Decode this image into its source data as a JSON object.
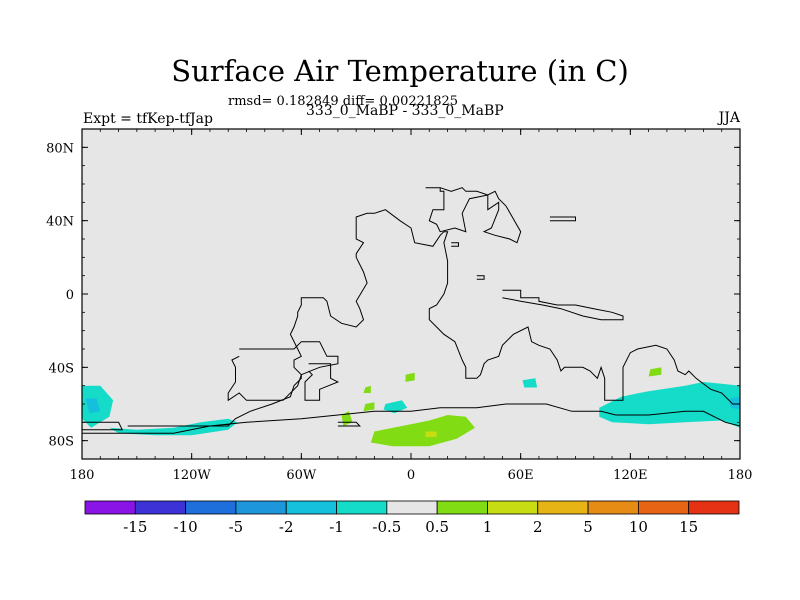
{
  "chart_data": {
    "type": "heatmap",
    "title": "Surface Air Temperature (in C)",
    "stats_line": "rmsd= 0.182849 diff= 0.00221825",
    "left_label": "Expt = tfKep-tfJap",
    "center_label": "333_0_MaBP - 333_0_MaBP",
    "right_label": "JJA",
    "xlim": [
      -180,
      180
    ],
    "ylim": [
      -90,
      90
    ],
    "x_ticks": [
      {
        "value": -180,
        "label": "180"
      },
      {
        "value": -120,
        "label": "120W"
      },
      {
        "value": -60,
        "label": "60W"
      },
      {
        "value": 0,
        "label": "0"
      },
      {
        "value": 60,
        "label": "60E"
      },
      {
        "value": 120,
        "label": "120E"
      },
      {
        "value": 180,
        "label": "180"
      }
    ],
    "y_ticks": [
      {
        "value": 80,
        "label": "80N"
      },
      {
        "value": 40,
        "label": "40N"
      },
      {
        "value": 0,
        "label": "0"
      },
      {
        "value": -40,
        "label": "40S"
      },
      {
        "value": -80,
        "label": "80S"
      }
    ],
    "colorbar": {
      "labels": [
        "-15",
        "-10",
        "-5",
        "-2",
        "-1",
        "-0.5",
        "0.5",
        "1",
        "2",
        "5",
        "10",
        "15"
      ],
      "colors": [
        "#8a14e6",
        "#3c32d6",
        "#1e6edc",
        "#1e96dc",
        "#14c0dc",
        "#14dcc8",
        "#e6e6e6",
        "#82dc14",
        "#c8dc14",
        "#e6b414",
        "#e68c14",
        "#e66414",
        "#e63214"
      ]
    },
    "background_color": "#e6e6e6",
    "anomaly_regions": [
      {
        "level": "-1 to -0.5",
        "color": "#14dcc8",
        "points": [
          [
            -180,
            -50
          ],
          [
            -170,
            -50
          ],
          [
            -163,
            -58
          ],
          [
            -165,
            -67
          ],
          [
            -175,
            -73
          ],
          [
            -180,
            -68
          ]
        ]
      },
      {
        "level": "-1 to -0.5",
        "color": "#14dcc8",
        "points": [
          [
            -165,
            -73
          ],
          [
            -150,
            -74
          ],
          [
            -130,
            -73
          ],
          [
            -115,
            -70
          ],
          [
            -100,
            -68
          ],
          [
            -95,
            -70
          ],
          [
            -100,
            -74
          ],
          [
            -120,
            -77
          ],
          [
            -140,
            -77
          ],
          [
            -160,
            -76
          ]
        ]
      },
      {
        "level": "-1 to -0.5",
        "color": "#14dcc8",
        "points": [
          [
            -14,
            -60
          ],
          [
            -5,
            -58
          ],
          [
            -2,
            -62
          ],
          [
            -9,
            -65
          ],
          [
            -15,
            -63
          ]
        ]
      },
      {
        "level": "-1 to -0.5",
        "color": "#14dcc8",
        "points": [
          [
            61,
            -47
          ],
          [
            68,
            -46
          ],
          [
            69,
            -51
          ],
          [
            62,
            -51
          ]
        ]
      },
      {
        "level": "-1 to -0.5",
        "color": "#14dcc8",
        "points": [
          [
            103,
            -62
          ],
          [
            115,
            -56
          ],
          [
            130,
            -53
          ],
          [
            150,
            -50
          ],
          [
            160,
            -48
          ],
          [
            170,
            -49
          ],
          [
            180,
            -50
          ],
          [
            180,
            -73
          ],
          [
            170,
            -69
          ],
          [
            150,
            -70
          ],
          [
            130,
            -71
          ],
          [
            110,
            -70
          ],
          [
            103,
            -67
          ]
        ]
      },
      {
        "level": "-2 to -1",
        "color": "#14c0dc",
        "points": [
          [
            -178,
            -57
          ],
          [
            -172,
            -57
          ],
          [
            -170,
            -64
          ],
          [
            -176,
            -65
          ]
        ]
      },
      {
        "level": "-2 to -1",
        "color": "#14c0dc",
        "points": [
          [
            174,
            -57
          ],
          [
            180,
            -56
          ],
          [
            180,
            -63
          ],
          [
            175,
            -62
          ]
        ]
      },
      {
        "level": "0.5 to 1",
        "color": "#82dc14",
        "points": [
          [
            -38,
            -66
          ],
          [
            -34,
            -64
          ],
          [
            -32,
            -70
          ],
          [
            -37,
            -72
          ]
        ]
      },
      {
        "level": "0.5 to 1",
        "color": "#82dc14",
        "points": [
          [
            -25,
            -60
          ],
          [
            -20,
            -59
          ],
          [
            -20,
            -63
          ],
          [
            -26,
            -64
          ]
        ]
      },
      {
        "level": "0.5 to 1",
        "color": "#82dc14",
        "points": [
          [
            -25,
            -51
          ],
          [
            -22,
            -50
          ],
          [
            -22,
            -54
          ],
          [
            -26,
            -54
          ]
        ]
      },
      {
        "level": "0.5 to 1",
        "color": "#82dc14",
        "points": [
          [
            -3,
            -44
          ],
          [
            2,
            -43
          ],
          [
            2,
            -47
          ],
          [
            -3,
            -48
          ]
        ]
      },
      {
        "level": "0.5 to 1",
        "color": "#82dc14",
        "points": [
          [
            -20,
            -75
          ],
          [
            -5,
            -72
          ],
          [
            10,
            -69
          ],
          [
            20,
            -66
          ],
          [
            30,
            -67
          ],
          [
            35,
            -73
          ],
          [
            25,
            -79
          ],
          [
            10,
            -83
          ],
          [
            -10,
            -83
          ],
          [
            -22,
            -81
          ]
        ]
      },
      {
        "level": "0.5 to 1",
        "color": "#82dc14",
        "points": [
          [
            131,
            -41
          ],
          [
            137,
            -40
          ],
          [
            137,
            -44
          ],
          [
            130,
            -45
          ]
        ]
      },
      {
        "level": "1 to 2",
        "color": "#c8dc14",
        "points": [
          [
            8,
            -75
          ],
          [
            14,
            -75
          ],
          [
            14,
            -78
          ],
          [
            8,
            -78
          ]
        ]
      }
    ],
    "land_outlines": [
      [
        [
          -155,
          -72
        ],
        [
          -100,
          -72
        ],
        [
          -96,
          -68
        ],
        [
          -88,
          -64
        ],
        [
          -76,
          -60
        ],
        [
          -66,
          -56
        ],
        [
          -64,
          -50
        ],
        [
          -60,
          -46
        ],
        [
          -60,
          -44
        ],
        [
          -64,
          -40
        ],
        [
          -64,
          -36
        ],
        [
          -60,
          -34
        ],
        [
          -62,
          -30
        ],
        [
          -66,
          -22
        ],
        [
          -64,
          -18
        ],
        [
          -62,
          -12
        ],
        [
          -62,
          -10
        ],
        [
          -60,
          -6
        ],
        [
          -60,
          -2
        ],
        [
          -48,
          -2
        ],
        [
          -46,
          -4
        ],
        [
          -44,
          -12
        ],
        [
          -38,
          -16
        ],
        [
          -30,
          -18
        ],
        [
          -26,
          -14
        ],
        [
          -28,
          -8
        ],
        [
          -30,
          -4
        ],
        [
          -24,
          6
        ],
        [
          -26,
          12
        ],
        [
          -30,
          20
        ],
        [
          -30,
          22
        ],
        [
          -26,
          28
        ],
        [
          -30,
          30
        ],
        [
          -30,
          42
        ],
        [
          -24,
          44
        ],
        [
          -20,
          44
        ],
        [
          -14,
          46
        ],
        [
          -6,
          40
        ],
        [
          0,
          36
        ],
        [
          2,
          28
        ],
        [
          12,
          26
        ],
        [
          16,
          32
        ],
        [
          18,
          34
        ],
        [
          20,
          34
        ],
        [
          18,
          28
        ],
        [
          20,
          18
        ],
        [
          20,
          6
        ],
        [
          18,
          0
        ],
        [
          14,
          -6
        ],
        [
          10,
          -8
        ],
        [
          10,
          -14
        ],
        [
          14,
          -18
        ],
        [
          18,
          -22
        ],
        [
          24,
          -26
        ],
        [
          28,
          -36
        ],
        [
          30,
          -40
        ],
        [
          30,
          -46
        ],
        [
          36,
          -46
        ],
        [
          38,
          -44
        ],
        [
          40,
          -38
        ],
        [
          42,
          -36
        ],
        [
          48,
          -34
        ],
        [
          50,
          -28
        ],
        [
          54,
          -24
        ],
        [
          56,
          -22
        ],
        [
          64,
          -18
        ],
        [
          66,
          -26
        ],
        [
          70,
          -28
        ],
        [
          76,
          -30
        ],
        [
          80,
          -36
        ],
        [
          82,
          -42
        ],
        [
          84,
          -40
        ],
        [
          94,
          -40
        ],
        [
          98,
          -42
        ],
        [
          102,
          -46
        ],
        [
          104,
          -40
        ],
        [
          106,
          -46
        ],
        [
          106,
          -58
        ],
        [
          116,
          -58
        ],
        [
          116,
          -40
        ],
        [
          120,
          -32
        ],
        [
          124,
          -30
        ],
        [
          134,
          -28
        ],
        [
          140,
          -30
        ],
        [
          144,
          -36
        ],
        [
          146,
          -42
        ],
        [
          150,
          -44
        ],
        [
          152,
          -42
        ],
        [
          156,
          -46
        ],
        [
          164,
          -52
        ],
        [
          170,
          -54
        ],
        [
          176,
          -60
        ],
        [
          180,
          -60
        ],
        [
          180,
          -72
        ],
        [
          172,
          -70
        ],
        [
          160,
          -64
        ],
        [
          150,
          -64
        ],
        [
          130,
          -66
        ],
        [
          112,
          -66
        ],
        [
          104,
          -64
        ],
        [
          88,
          -64
        ],
        [
          74,
          -60
        ],
        [
          52,
          -60
        ],
        [
          36,
          -62
        ],
        [
          16,
          -62
        ],
        [
          0,
          -64
        ],
        [
          -20,
          -64
        ],
        [
          -40,
          -66
        ],
        [
          -60,
          -68
        ],
        [
          -90,
          -70
        ],
        [
          -110,
          -72
        ],
        [
          -130,
          -76
        ],
        [
          -150,
          -76
        ],
        [
          -170,
          -76
        ],
        [
          -180,
          -76
        ]
      ],
      [
        [
          8,
          58
        ],
        [
          16,
          58
        ],
        [
          16,
          56
        ],
        [
          18,
          56
        ],
        [
          18,
          46
        ],
        [
          12,
          46
        ],
        [
          10,
          40
        ],
        [
          14,
          38
        ],
        [
          16,
          34
        ],
        [
          24,
          36
        ],
        [
          30,
          34
        ],
        [
          28,
          44
        ],
        [
          32,
          52
        ],
        [
          42,
          54
        ],
        [
          42,
          46
        ],
        [
          48,
          50
        ],
        [
          48,
          46
        ],
        [
          44,
          36
        ],
        [
          40,
          34
        ],
        [
          46,
          32
        ],
        [
          54,
          30
        ],
        [
          58,
          28
        ],
        [
          60,
          34
        ],
        [
          52,
          48
        ],
        [
          48,
          52
        ],
        [
          46,
          56
        ],
        [
          42,
          54
        ],
        [
          36,
          56
        ],
        [
          30,
          56
        ],
        [
          28,
          58
        ],
        [
          22,
          56
        ],
        [
          16,
          58
        ]
      ],
      [
        [
          76,
          42
        ],
        [
          90,
          42
        ],
        [
          90,
          40
        ],
        [
          76,
          40
        ]
      ],
      [
        [
          22,
          28
        ],
        [
          26,
          28
        ],
        [
          26,
          26
        ],
        [
          22,
          26
        ]
      ],
      [
        [
          36,
          10
        ],
        [
          40,
          10
        ],
        [
          40,
          8
        ],
        [
          36,
          8
        ]
      ],
      [
        [
          50,
          2
        ],
        [
          60,
          2
        ],
        [
          60,
          -2
        ],
        [
          70,
          -2
        ],
        [
          70,
          -4
        ],
        [
          80,
          -6
        ],
        [
          90,
          -6
        ],
        [
          100,
          -8
        ],
        [
          110,
          -10
        ],
        [
          116,
          -12
        ],
        [
          116,
          -14
        ],
        [
          104,
          -14
        ],
        [
          94,
          -12
        ],
        [
          82,
          -8
        ],
        [
          72,
          -6
        ],
        [
          60,
          -4
        ],
        [
          50,
          -2
        ]
      ],
      [
        [
          -94,
          -30
        ],
        [
          -64,
          -30
        ],
        [
          -60,
          -26
        ],
        [
          -50,
          -26
        ],
        [
          -46,
          -34
        ],
        [
          -40,
          -34
        ],
        [
          -40,
          -38
        ],
        [
          -50,
          -40
        ],
        [
          -60,
          -44
        ],
        [
          -62,
          -50
        ],
        [
          -70,
          -58
        ],
        [
          -90,
          -58
        ],
        [
          -94,
          -54
        ],
        [
          -100,
          -58
        ],
        [
          -100,
          -54
        ],
        [
          -96,
          -48
        ],
        [
          -96,
          -40
        ],
        [
          -98,
          -36
        ],
        [
          -94,
          -34
        ]
      ],
      [
        [
          -56,
          -38
        ],
        [
          -44,
          -38
        ],
        [
          -44,
          -46
        ],
        [
          -40,
          -48
        ],
        [
          -50,
          -52
        ],
        [
          -50,
          -58
        ],
        [
          -58,
          -58
        ],
        [
          -58,
          -48
        ],
        [
          -54,
          -44
        ],
        [
          -56,
          -42
        ]
      ],
      [
        [
          -180,
          -70
        ],
        [
          -160,
          -70
        ],
        [
          -158,
          -74
        ],
        [
          -180,
          -74
        ]
      ],
      [
        [
          -40,
          -70
        ],
        [
          -30,
          -70
        ],
        [
          -28,
          -72
        ],
        [
          -40,
          -72
        ]
      ]
    ]
  }
}
